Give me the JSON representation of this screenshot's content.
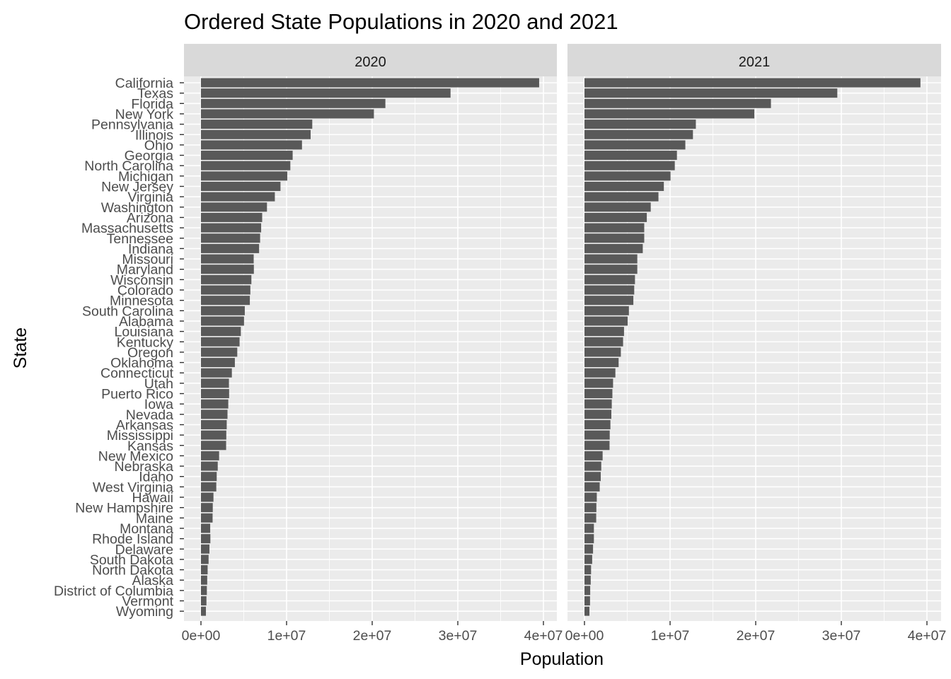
{
  "chart_data": {
    "type": "bar",
    "orientation": "horizontal",
    "title": "Ordered State Populations in 2020 and 2021",
    "xlabel": "Population",
    "ylabel": "State",
    "xlim": [
      0,
      40000000
    ],
    "x_ticks": [
      0,
      10000000,
      20000000,
      30000000,
      40000000
    ],
    "x_tick_labels": [
      "0e+00",
      "1e+07",
      "2e+07",
      "3e+07",
      "4e+07"
    ],
    "grid": true,
    "bar_color": "#595959",
    "panel_color": "#ebebeb",
    "strip_color": "#d9d9d9",
    "categories": [
      "California",
      "Texas",
      "Florida",
      "New York",
      "Pennsylvania",
      "Illinois",
      "Ohio",
      "Georgia",
      "North Carolina",
      "Michigan",
      "New Jersey",
      "Virginia",
      "Washington",
      "Arizona",
      "Massachusetts",
      "Tennessee",
      "Indiana",
      "Missouri",
      "Maryland",
      "Wisconsin",
      "Colorado",
      "Minnesota",
      "South Carolina",
      "Alabama",
      "Louisiana",
      "Kentucky",
      "Oregon",
      "Oklahoma",
      "Connecticut",
      "Utah",
      "Puerto Rico",
      "Iowa",
      "Nevada",
      "Arkansas",
      "Mississippi",
      "Kansas",
      "New Mexico",
      "Nebraska",
      "Idaho",
      "West Virginia",
      "Hawaii",
      "New Hampshire",
      "Maine",
      "Montana",
      "Rhode Island",
      "Delaware",
      "South Dakota",
      "North Dakota",
      "Alaska",
      "District of Columbia",
      "Vermont",
      "Wyoming"
    ],
    "series": [
      {
        "name": "2020",
        "values": [
          39500000,
          29150000,
          21540000,
          20200000,
          13000000,
          12810000,
          11800000,
          10710000,
          10440000,
          10080000,
          9290000,
          8630000,
          7710000,
          7150000,
          7030000,
          6910000,
          6790000,
          6160000,
          6180000,
          5890000,
          5770000,
          5710000,
          5120000,
          5030000,
          4660000,
          4510000,
          4240000,
          3960000,
          3610000,
          3270000,
          3290000,
          3190000,
          3100000,
          3010000,
          2960000,
          2940000,
          2120000,
          1960000,
          1840000,
          1790000,
          1460000,
          1380000,
          1360000,
          1080000,
          1100000,
          990000,
          890000,
          780000,
          730000,
          690000,
          640000,
          580000
        ]
      },
      {
        "name": "2021",
        "values": [
          39240000,
          29530000,
          21780000,
          19840000,
          13010000,
          12670000,
          11780000,
          10800000,
          10550000,
          10050000,
          9270000,
          8640000,
          7740000,
          7280000,
          6980000,
          6980000,
          6810000,
          6170000,
          6170000,
          5900000,
          5810000,
          5710000,
          5190000,
          5040000,
          4620000,
          4510000,
          4250000,
          3990000,
          3610000,
          3340000,
          3260000,
          3190000,
          3140000,
          3030000,
          2950000,
          2930000,
          2120000,
          1960000,
          1900000,
          1780000,
          1440000,
          1390000,
          1370000,
          1100000,
          1100000,
          1000000,
          900000,
          770000,
          730000,
          670000,
          650000,
          580000
        ]
      }
    ]
  }
}
